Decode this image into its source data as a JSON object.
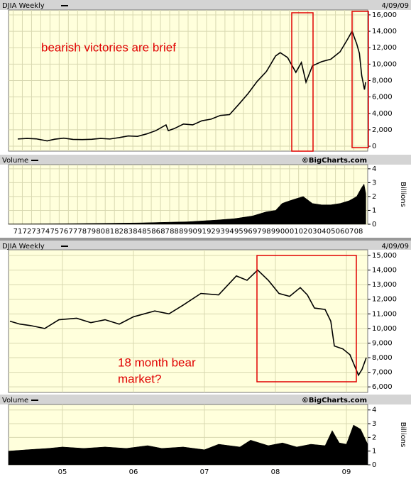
{
  "chart_data": [
    {
      "type": "line",
      "title": "DJIA Weekly",
      "date": "4/09/09",
      "color": "#000000",
      "x": [
        1971.5,
        1972.5,
        1973.5,
        1974.7,
        1975.5,
        1976.5,
        1977.5,
        1978.5,
        1979.5,
        1980.5,
        1981.5,
        1982.5,
        1983.5,
        1984.5,
        1985.5,
        1986.5,
        1987.6,
        1987.85,
        1988.5,
        1989.5,
        1990.5,
        1991.5,
        1992.5,
        1993.5,
        1994.5,
        1995.5,
        1996.5,
        1997.5,
        1998.5,
        1999.5,
        2000.0,
        2000.8,
        2001.7,
        2002.3,
        2002.8,
        2003.5,
        2004.5,
        2005.5,
        2006.5,
        2007.3,
        2007.8,
        2008.3,
        2008.6,
        2008.85,
        2009.15,
        2009.27
      ],
      "values": [
        880,
        950,
        900,
        650,
        850,
        980,
        830,
        810,
        840,
        950,
        880,
        1050,
        1250,
        1200,
        1500,
        1900,
        2600,
        1900,
        2150,
        2700,
        2600,
        3100,
        3300,
        3750,
        3850,
        5100,
        6400,
        7900,
        9100,
        11000,
        11400,
        10800,
        9000,
        10200,
        7800,
        9800,
        10300,
        10600,
        11500,
        13000,
        14000,
        12500,
        11300,
        8600,
        6900,
        7800
      ],
      "xlim": [
        1970.5,
        2009.5
      ],
      "ylim": [
        -600,
        16600
      ],
      "yticks": [
        0,
        {
          "value": 2000,
          "label": "2,000"
        },
        {
          "value": 4000,
          "label": "4,000"
        },
        {
          "value": 6000,
          "label": "6,000"
        },
        {
          "value": 8000,
          "label": "8,000"
        },
        {
          "value": 10000,
          "label": "10,000"
        },
        {
          "value": 12000,
          "label": "12,000"
        },
        {
          "value": 14000,
          "label": "14,000"
        },
        {
          "value": 16000,
          "label": "16,000"
        }
      ],
      "grid": true,
      "annotations": [
        "bearish victories are brief"
      ]
    },
    {
      "type": "area",
      "title": "Volume",
      "source": "©BigCharts.com",
      "ylabel": "Billions",
      "color": "#000000",
      "x": [
        1970.5,
        1975,
        1980,
        1985,
        1988,
        1990,
        1993,
        1995,
        1997,
        1998.5,
        1999.5,
        2000.2,
        2000.6,
        2001.5,
        2002.5,
        2003.5,
        2004.5,
        2005.5,
        2006.5,
        2007.5,
        2008.3,
        2008.8,
        2009.1,
        2009.3
      ],
      "values": [
        0.02,
        0.03,
        0.06,
        0.1,
        0.15,
        0.18,
        0.3,
        0.4,
        0.6,
        0.9,
        1.0,
        1.5,
        1.6,
        1.8,
        2.0,
        1.5,
        1.4,
        1.4,
        1.5,
        1.7,
        2.0,
        2.6,
        2.9,
        2.2
      ],
      "xlim": [
        1970.5,
        2009.5
      ],
      "ylim": [
        0,
        4.3
      ],
      "yticks": [
        0,
        1,
        2,
        3,
        4
      ],
      "xticks": [
        {
          "value": 1971,
          "label": "71"
        },
        {
          "value": 1972,
          "label": "72"
        },
        {
          "value": 1973,
          "label": "73"
        },
        {
          "value": 1974,
          "label": "74"
        },
        {
          "value": 1975,
          "label": "75"
        },
        {
          "value": 1976,
          "label": "76"
        },
        {
          "value": 1977,
          "label": "77"
        },
        {
          "value": 1978,
          "label": "78"
        },
        {
          "value": 1979,
          "label": "79"
        },
        {
          "value": 1980,
          "label": "80"
        },
        {
          "value": 1981,
          "label": "81"
        },
        {
          "value": 1982,
          "label": "82"
        },
        {
          "value": 1983,
          "label": "83"
        },
        {
          "value": 1984,
          "label": "84"
        },
        {
          "value": 1985,
          "label": "85"
        },
        {
          "value": 1986,
          "label": "86"
        },
        {
          "value": 1987,
          "label": "87"
        },
        {
          "value": 1988,
          "label": "88"
        },
        {
          "value": 1989,
          "label": "89"
        },
        {
          "value": 1990,
          "label": "90"
        },
        {
          "value": 1991,
          "label": "91"
        },
        {
          "value": 1992,
          "label": "92"
        },
        {
          "value": 1993,
          "label": "93"
        },
        {
          "value": 1994,
          "label": "94"
        },
        {
          "value": 1995,
          "label": "95"
        },
        {
          "value": 1996,
          "label": "96"
        },
        {
          "value": 1997,
          "label": "97"
        },
        {
          "value": 1998,
          "label": "98"
        },
        {
          "value": 1999,
          "label": "99"
        },
        {
          "value": 2000,
          "label": "00"
        },
        {
          "value": 2001,
          "label": "01"
        },
        {
          "value": 2002,
          "label": "02"
        },
        {
          "value": 2003,
          "label": "03"
        },
        {
          "value": 2004,
          "label": "04"
        },
        {
          "value": 2005,
          "label": "05"
        },
        {
          "value": 2006,
          "label": "06"
        },
        {
          "value": 2007,
          "label": "07"
        },
        {
          "value": 2008,
          "label": "08"
        }
      ],
      "grid": true
    },
    {
      "type": "line",
      "title": "DJIA Weekly",
      "date": "4/09/09",
      "color": "#000000",
      "x": [
        2004.26,
        2004.4,
        2004.55,
        2004.75,
        2004.95,
        2005.2,
        2005.4,
        2005.6,
        2005.8,
        2006.0,
        2006.3,
        2006.5,
        2006.7,
        2006.95,
        2007.2,
        2007.45,
        2007.6,
        2007.75,
        2007.9,
        2008.05,
        2008.2,
        2008.35,
        2008.45,
        2008.55,
        2008.7,
        2008.78,
        2008.83,
        2008.95,
        2009.05,
        2009.17,
        2009.22,
        2009.28
      ],
      "values": [
        10500,
        10300,
        10200,
        10000,
        10600,
        10700,
        10400,
        10600,
        10300,
        10800,
        11200,
        11000,
        11600,
        12400,
        12300,
        13600,
        13300,
        14000,
        13300,
        12400,
        12200,
        12800,
        12300,
        11400,
        11300,
        10500,
        8800,
        8600,
        8200,
        6800,
        7200,
        8000
      ],
      "xlim": [
        2004.24,
        2009.3
      ],
      "ylim": [
        5620,
        15390
      ],
      "yticks": [
        {
          "value": 6000,
          "label": "6,000"
        },
        {
          "value": 7000,
          "label": "7,000"
        },
        {
          "value": 8000,
          "label": "8,000"
        },
        {
          "value": 9000,
          "label": "9,000"
        },
        {
          "value": 10000,
          "label": "10,000"
        },
        {
          "value": 11000,
          "label": "11,000"
        },
        {
          "value": 12000,
          "label": "12,000"
        },
        {
          "value": 13000,
          "label": "13,000"
        },
        {
          "value": 14000,
          "label": "14,000"
        },
        {
          "value": 15000,
          "label": "15,000"
        }
      ],
      "grid": true,
      "annotations": [
        "18 month bear",
        "market?"
      ]
    },
    {
      "type": "area",
      "title": "Volume",
      "source": "©BigCharts.com",
      "ylabel": "Billions",
      "color": "#000000",
      "x": [
        2004.24,
        2004.5,
        2004.8,
        2005.0,
        2005.3,
        2005.6,
        2005.9,
        2006.2,
        2006.4,
        2006.7,
        2007.0,
        2007.2,
        2007.5,
        2007.65,
        2007.9,
        2008.1,
        2008.3,
        2008.5,
        2008.7,
        2008.8,
        2008.9,
        2009.0,
        2009.1,
        2009.2,
        2009.3
      ],
      "values": [
        1.0,
        1.1,
        1.2,
        1.3,
        1.2,
        1.3,
        1.2,
        1.4,
        1.2,
        1.3,
        1.1,
        1.5,
        1.3,
        1.8,
        1.4,
        1.6,
        1.3,
        1.5,
        1.4,
        2.5,
        1.6,
        1.5,
        2.9,
        2.6,
        1.5
      ],
      "xlim": [
        2004.24,
        2009.3
      ],
      "ylim": [
        0,
        4.4
      ],
      "yticks": [
        0,
        1,
        2,
        3,
        4
      ],
      "xticks": [
        {
          "value": 2005,
          "label": "05"
        },
        {
          "value": 2006,
          "label": "06"
        },
        {
          "value": 2007,
          "label": "07"
        },
        {
          "value": 2008,
          "label": "08"
        },
        {
          "value": 2009,
          "label": "09"
        }
      ],
      "grid": true
    }
  ]
}
